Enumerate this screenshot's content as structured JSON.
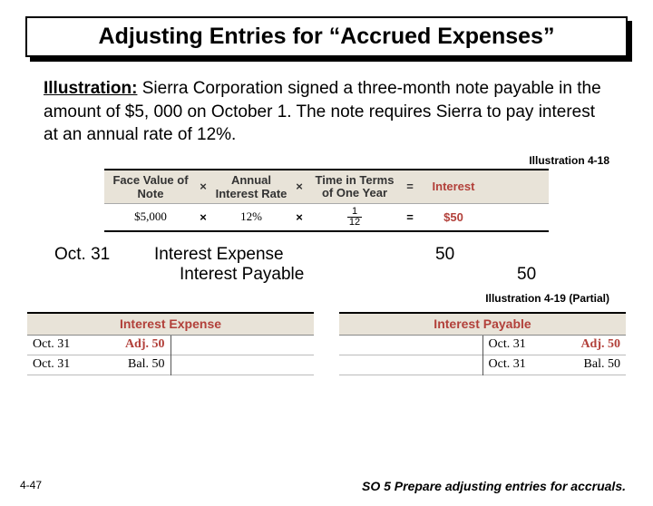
{
  "title": "Adjusting Entries for “Accrued Expenses”",
  "illustration": {
    "label": "Illustration:",
    "text": "Sierra Corporation signed a three-month note payable in the amount of $5, 000 on October 1. The note requires Sierra to pay interest at an annual rate of 12%."
  },
  "illustration_ref_1": "Illustration 4-18",
  "formula": {
    "headers": {
      "face": "Face Value of Note",
      "rate": "Annual Interest Rate",
      "time": "Time in Terms of One Year",
      "interest": "Interest",
      "times": "×",
      "equals": "="
    },
    "values": {
      "face": "$5,000",
      "rate": "12%",
      "time_num": "1",
      "time_den": "12",
      "interest": "$50"
    }
  },
  "journal_entry": {
    "date": "Oct. 31",
    "debit_account": "Interest Expense",
    "credit_account": "Interest Payable",
    "debit_amount": "50",
    "credit_amount": "50"
  },
  "illustration_ref_2": "Illustration 4-19 (Partial)",
  "taccounts": {
    "left": {
      "title": "Interest Expense",
      "rows": [
        {
          "left_date": "Oct. 31",
          "left_label": "Adj. 50",
          "left_is_adj": true,
          "right_date": "",
          "right_label": ""
        },
        {
          "left_date": "Oct. 31",
          "left_label": "Bal. 50",
          "left_is_adj": false,
          "right_date": "",
          "right_label": ""
        }
      ]
    },
    "right": {
      "title": "Interest Payable",
      "rows": [
        {
          "left_date": "",
          "left_label": "",
          "right_date": "Oct. 31",
          "right_label": "Adj. 50",
          "right_is_adj": true
        },
        {
          "left_date": "",
          "left_label": "",
          "right_date": "Oct. 31",
          "right_label": "Bal. 50",
          "right_is_adj": false
        }
      ]
    }
  },
  "footer": {
    "slide_number": "4-47",
    "so": "SO 5  Prepare adjusting entries for accruals."
  }
}
